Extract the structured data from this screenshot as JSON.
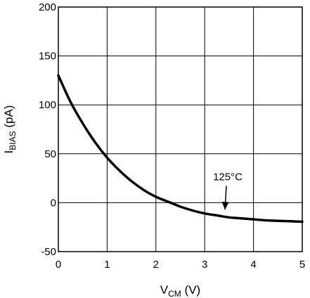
{
  "chart_data": {
    "type": "line",
    "title": "",
    "xlabel": {
      "main": "V",
      "sub": "CM",
      "unit": " (V)"
    },
    "ylabel": {
      "main": "I",
      "sub": "BIAS",
      "unit": " (pA)"
    },
    "xlim": [
      0,
      5
    ],
    "ylim": [
      -50,
      200
    ],
    "xticks": [
      0,
      1,
      2,
      3,
      4,
      5
    ],
    "yticks": [
      -50,
      0,
      50,
      100,
      150,
      200
    ],
    "x_tick_labels": [
      "0",
      "1",
      "2",
      "3",
      "4",
      "5"
    ],
    "y_tick_labels": [
      "-50",
      "0",
      "50",
      "100",
      "150",
      "200"
    ],
    "grid": true,
    "series": [
      {
        "name": "125°C",
        "x": [
          0,
          0.25,
          0.5,
          0.75,
          1.0,
          1.25,
          1.5,
          1.75,
          2.0,
          2.25,
          2.5,
          2.75,
          3.0,
          3.25,
          3.5,
          3.75,
          4.0,
          4.25,
          4.5,
          4.75,
          5.0
        ],
        "y": [
          130,
          103,
          81,
          62,
          46,
          33,
          22,
          13,
          6,
          1,
          -4,
          -8,
          -11,
          -13,
          -15,
          -16,
          -17,
          -18,
          -18.5,
          -19,
          -19.5
        ]
      }
    ],
    "annotations": [
      {
        "text": "125°C",
        "x": 3.3,
        "y": 23,
        "arrow_to": [
          3.3,
          -10
        ]
      }
    ]
  }
}
